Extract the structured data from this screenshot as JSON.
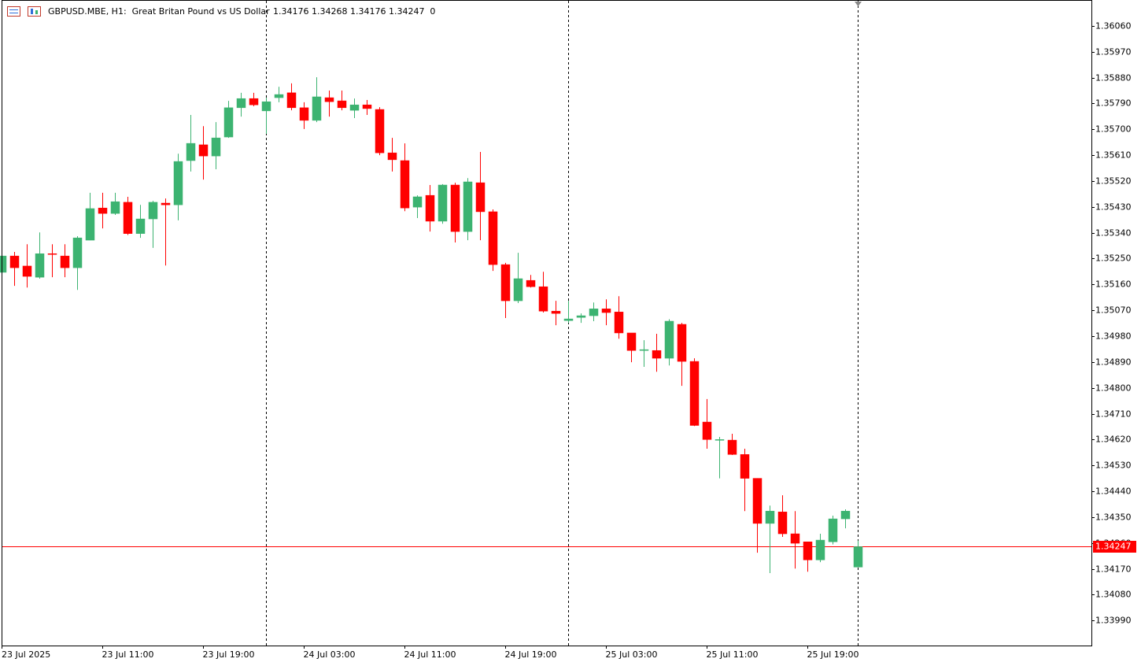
{
  "chart_data": {
    "type": "candlestick",
    "title": "GBPUSD.MBE, H1:  Great Britan Pound vs US Dollar",
    "ohlc_info": "1.34176 1.34268 1.34176 1.34247  0",
    "categories": [
      "23 Jul 2025",
      null,
      null,
      null,
      null,
      null,
      null,
      null,
      "23 Jul 11:00",
      null,
      null,
      null,
      null,
      null,
      null,
      null,
      "23 Jul 19:00",
      null,
      null,
      null,
      null,
      null,
      null,
      null,
      "24 Jul 03:00",
      null,
      null,
      null,
      null,
      null,
      null,
      null,
      "24 Jul 11:00",
      null,
      null,
      null,
      null,
      null,
      null,
      null,
      "24 Jul 19:00",
      null,
      null,
      null,
      null,
      null,
      null,
      null,
      "25 Jul 03:00",
      null,
      null,
      null,
      null,
      null,
      null,
      null,
      "25 Jul 11:00",
      null,
      null,
      null,
      null,
      null,
      null,
      null,
      "25 Jul 19:00",
      null,
      null,
      null,
      null
    ],
    "open": [
      1.35202,
      1.35259,
      1.35224,
      1.35185,
      1.35267,
      1.35259,
      1.35218,
      1.35314,
      1.35426,
      1.35407,
      1.35446,
      1.35337,
      1.35388,
      1.35443,
      1.35437,
      1.35591,
      1.35646,
      1.35607,
      1.35673,
      1.35775,
      1.35807,
      1.35764,
      1.3581,
      1.35827,
      1.35775,
      1.35731,
      1.3581,
      1.35799,
      1.35766,
      1.35785,
      1.35769,
      1.35618,
      1.35591,
      1.35429,
      1.3547,
      1.3538,
      1.35506,
      1.35344,
      1.35514,
      1.35413,
      1.35229,
      1.35103,
      1.35174,
      1.35152,
      1.35067,
      1.35034,
      1.35045,
      1.35051,
      1.35075,
      1.35064,
      1.34991,
      1.3493,
      1.3493,
      1.34903,
      1.35021,
      1.34892,
      1.34681,
      1.34618,
      1.34618,
      1.34568,
      1.34485,
      1.34328,
      1.34368,
      1.34292,
      1.34264,
      1.34201,
      1.34264,
      1.34344,
      1.34176
    ],
    "high": [
      1.35267,
      1.35273,
      1.353,
      1.35341,
      1.353,
      1.353,
      1.35328,
      1.35479,
      1.35479,
      1.35479,
      1.35465,
      1.35437,
      1.35451,
      1.35459,
      1.35615,
      1.3575,
      1.35711,
      1.35725,
      1.35799,
      1.35827,
      1.35827,
      1.3581,
      1.35848,
      1.3586,
      1.35794,
      1.35881,
      1.35835,
      1.35835,
      1.35807,
      1.35802,
      1.35777,
      1.3567,
      1.35651,
      1.3547,
      1.35506,
      1.35509,
      1.35514,
      1.3553,
      1.35621,
      1.35421,
      1.35235,
      1.3527,
      1.35193,
      1.35204,
      1.35103,
      1.35103,
      1.35059,
      1.35097,
      1.35108,
      1.35119,
      1.34991,
      1.34966,
      1.34988,
      1.35039,
      1.35026,
      1.34903,
      1.34761,
      1.34629,
      1.3464,
      1.34588,
      1.34485,
      1.3439,
      1.34426,
      1.34371,
      1.34264,
      1.34292,
      1.34355,
      1.34377,
      1.34268
    ],
    "low": [
      1.35191,
      1.35155,
      1.35149,
      1.3518,
      1.35185,
      1.35185,
      1.35141,
      1.35314,
      1.35355,
      1.35402,
      1.35332,
      1.35322,
      1.35287,
      1.35226,
      1.35383,
      1.35553,
      1.35525,
      1.35561,
      1.3567,
      1.35744,
      1.3578,
      1.35684,
      1.35794,
      1.35766,
      1.35701,
      1.35725,
      1.35744,
      1.35766,
      1.35739,
      1.3575,
      1.3561,
      1.35553,
      1.35415,
      1.35391,
      1.35344,
      1.35371,
      1.35306,
      1.35314,
      1.35314,
      1.35207,
      1.35043,
      1.35095,
      1.35149,
      1.35062,
      1.35018,
      1.35026,
      1.35026,
      1.35032,
      1.35018,
      1.34971,
      1.34889,
      1.34873,
      1.34856,
      1.34878,
      1.34807,
      1.34667,
      1.34588,
      1.34485,
      1.34566,
      1.34371,
      1.34226,
      1.34155,
      1.34281,
      1.34171,
      1.3416,
      1.34193,
      1.34255,
      1.34311,
      1.34176
    ],
    "close": [
      1.35259,
      1.35218,
      1.35188,
      1.35267,
      1.35265,
      1.35218,
      1.35322,
      1.35424,
      1.35407,
      1.35448,
      1.35337,
      1.35388,
      1.35446,
      1.35437,
      1.35588,
      1.35651,
      1.35607,
      1.3567,
      1.35775,
      1.35807,
      1.35785,
      1.35796,
      1.35821,
      1.35775,
      1.35731,
      1.35813,
      1.35796,
      1.35775,
      1.35785,
      1.35772,
      1.35618,
      1.35594,
      1.35426,
      1.35465,
      1.3538,
      1.35506,
      1.35344,
      1.35517,
      1.35413,
      1.35229,
      1.35103,
      1.3518,
      1.35152,
      1.35067,
      1.35059,
      1.3504,
      1.35051,
      1.35075,
      1.35062,
      1.34991,
      1.3493,
      1.34933,
      1.34903,
      1.35032,
      1.34892,
      1.34669,
      1.3462,
      1.3462,
      1.34568,
      1.34485,
      1.34328,
      1.34371,
      1.34292,
      1.34259,
      1.34201,
      1.3427,
      1.34344,
      1.34371,
      1.34247
    ],
    "up_color": "#3cb371",
    "down_color": "#ff0000",
    "ylim": [
      1.33903,
      1.3615
    ],
    "yticks": [
      {
        "value": 1.3606,
        "label": "1.36060"
      },
      {
        "value": 1.3597,
        "label": "1.35970"
      },
      {
        "value": 1.3588,
        "label": "1.35880"
      },
      {
        "value": 1.3579,
        "label": "1.35790"
      },
      {
        "value": 1.357,
        "label": "1.35700"
      },
      {
        "value": 1.3561,
        "label": "1.35610"
      },
      {
        "value": 1.3552,
        "label": "1.35520"
      },
      {
        "value": 1.3543,
        "label": "1.35430"
      },
      {
        "value": 1.3534,
        "label": "1.35340"
      },
      {
        "value": 1.3525,
        "label": "1.35250"
      },
      {
        "value": 1.3516,
        "label": "1.35160"
      },
      {
        "value": 1.3507,
        "label": "1.35070"
      },
      {
        "value": 1.3498,
        "label": "1.34980"
      },
      {
        "value": 1.3489,
        "label": "1.34890"
      },
      {
        "value": 1.348,
        "label": "1.34800"
      },
      {
        "value": 1.3471,
        "label": "1.34710"
      },
      {
        "value": 1.3462,
        "label": "1.34620"
      },
      {
        "value": 1.3453,
        "label": "1.34530"
      },
      {
        "value": 1.3444,
        "label": "1.34440"
      },
      {
        "value": 1.3435,
        "label": "1.34350"
      },
      {
        "value": 1.3426,
        "label": "1.34260"
      },
      {
        "value": 1.3417,
        "label": "1.34170"
      },
      {
        "value": 1.3408,
        "label": "1.34080"
      },
      {
        "value": 1.3399,
        "label": "1.33990"
      }
    ],
    "current_price": {
      "value": 1.34247,
      "label": "1.34247"
    },
    "current_price_color": "#ff0000"
  }
}
